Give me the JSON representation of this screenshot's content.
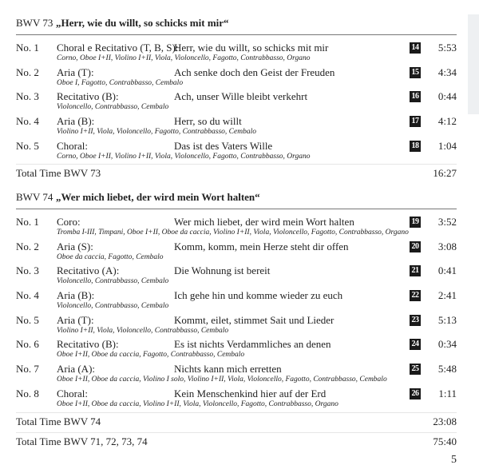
{
  "sections": [
    {
      "bwv": "BWV 73",
      "title": "„Herr, wie du willt, so schicks mit mir“",
      "movements": [
        {
          "no": "No. 1",
          "type": "Choral e Recitativo (T, B, S):",
          "text": "Herr, wie du willt, so schicks mit mir",
          "track": "14",
          "time": "5:53",
          "instruments": "Corno, Oboe I+II, Violino I+II, Viola, Violoncello, Fagotto, Contrabbasso, Organo"
        },
        {
          "no": "No. 2",
          "type": "Aria (T):",
          "text": "Ach senke doch den Geist der Freuden",
          "track": "15",
          "time": "4:34",
          "instruments": "Oboe I, Fagotto, Contrabbasso, Cembalo"
        },
        {
          "no": "No. 3",
          "type": "Recitativo (B):",
          "text": "Ach, unser Wille bleibt verkehrt",
          "track": "16",
          "time": "0:44",
          "instruments": "Violoncello, Contrabbasso, Cembalo"
        },
        {
          "no": "No. 4",
          "type": "Aria (B):",
          "text": "Herr, so du willt",
          "track": "17",
          "time": "4:12",
          "instruments": "Violino I+II, Viola, Violoncello, Fagotto, Contrabbasso, Cembalo"
        },
        {
          "no": "No. 5",
          "type": "Choral:",
          "text": "Das ist des Vaters Wille",
          "track": "18",
          "time": "1:04",
          "instruments": "Corno, Oboe I+II, Violino I+II, Viola, Violoncello, Fagotto, Contrabbasso, Organo"
        }
      ],
      "totals": [
        {
          "label": "Total Time BWV 73",
          "time": "16:27"
        }
      ]
    },
    {
      "bwv": "BWV 74",
      "title": "„Wer mich liebet, der wird mein Wort halten“",
      "movements": [
        {
          "no": "No. 1",
          "type": "Coro:",
          "text": "Wer mich liebet, der wird mein Wort halten",
          "track": "19",
          "time": "3:52",
          "instruments": "Tromba I-III, Timpani, Oboe I+II, Oboe da caccia, Violino I+II, Viola, Violoncello, Fagotto, Contrabbasso, Organo"
        },
        {
          "no": "No. 2",
          "type": "Aria (S):",
          "text": "Komm, komm, mein Herze steht dir offen",
          "track": "20",
          "time": "3:08",
          "instruments": "Oboe da caccia, Fagotto, Cembalo"
        },
        {
          "no": "No. 3",
          "type": "Recitativo (A):",
          "text": "Die Wohnung ist bereit",
          "track": "21",
          "time": "0:41",
          "instruments": "Violoncello, Contrabbasso, Cembalo"
        },
        {
          "no": "No. 4",
          "type": "Aria (B):",
          "text": "Ich gehe hin und komme wieder zu euch",
          "track": "22",
          "time": "2:41",
          "instruments": "Violoncello, Contrabbasso, Cembalo"
        },
        {
          "no": "No. 5",
          "type": "Aria (T):",
          "text": "Kommt, eilet, stimmet Sait und Lieder",
          "track": "23",
          "time": "5:13",
          "instruments": "Violino I+II, Viola, Violoncello, Contrabbasso, Cembalo"
        },
        {
          "no": "No. 6",
          "type": "Recitativo (B):",
          "text": "Es ist nichts Verdammliches an denen",
          "track": "24",
          "time": "0:34",
          "instruments": "Oboe I+II, Oboe da caccia, Fagotto, Contrabbasso, Cembalo"
        },
        {
          "no": "No. 7",
          "type": "Aria (A):",
          "text": "Nichts kann mich erretten",
          "track": "25",
          "time": "5:48",
          "instruments": "Oboe I+II, Oboe da caccia, Violino I solo, Violino I+II, Viola, Violoncello, Fagotto, Contrabbasso, Cembalo"
        },
        {
          "no": "No. 8",
          "type": "Choral:",
          "text": "Kein Menschenkind hier auf der Erd",
          "track": "26",
          "time": "1:11",
          "instruments": "Oboe I+II, Oboe da caccia, Violino I+II, Viola, Violoncello, Fagotto, Contrabbasso, Organo"
        }
      ],
      "totals": [
        {
          "label": "Total Time BWV 74",
          "time": "23:08"
        },
        {
          "label": "Total Time BWV 71, 72, 73, 74",
          "time": "75:40"
        }
      ]
    }
  ],
  "page_number": "5"
}
